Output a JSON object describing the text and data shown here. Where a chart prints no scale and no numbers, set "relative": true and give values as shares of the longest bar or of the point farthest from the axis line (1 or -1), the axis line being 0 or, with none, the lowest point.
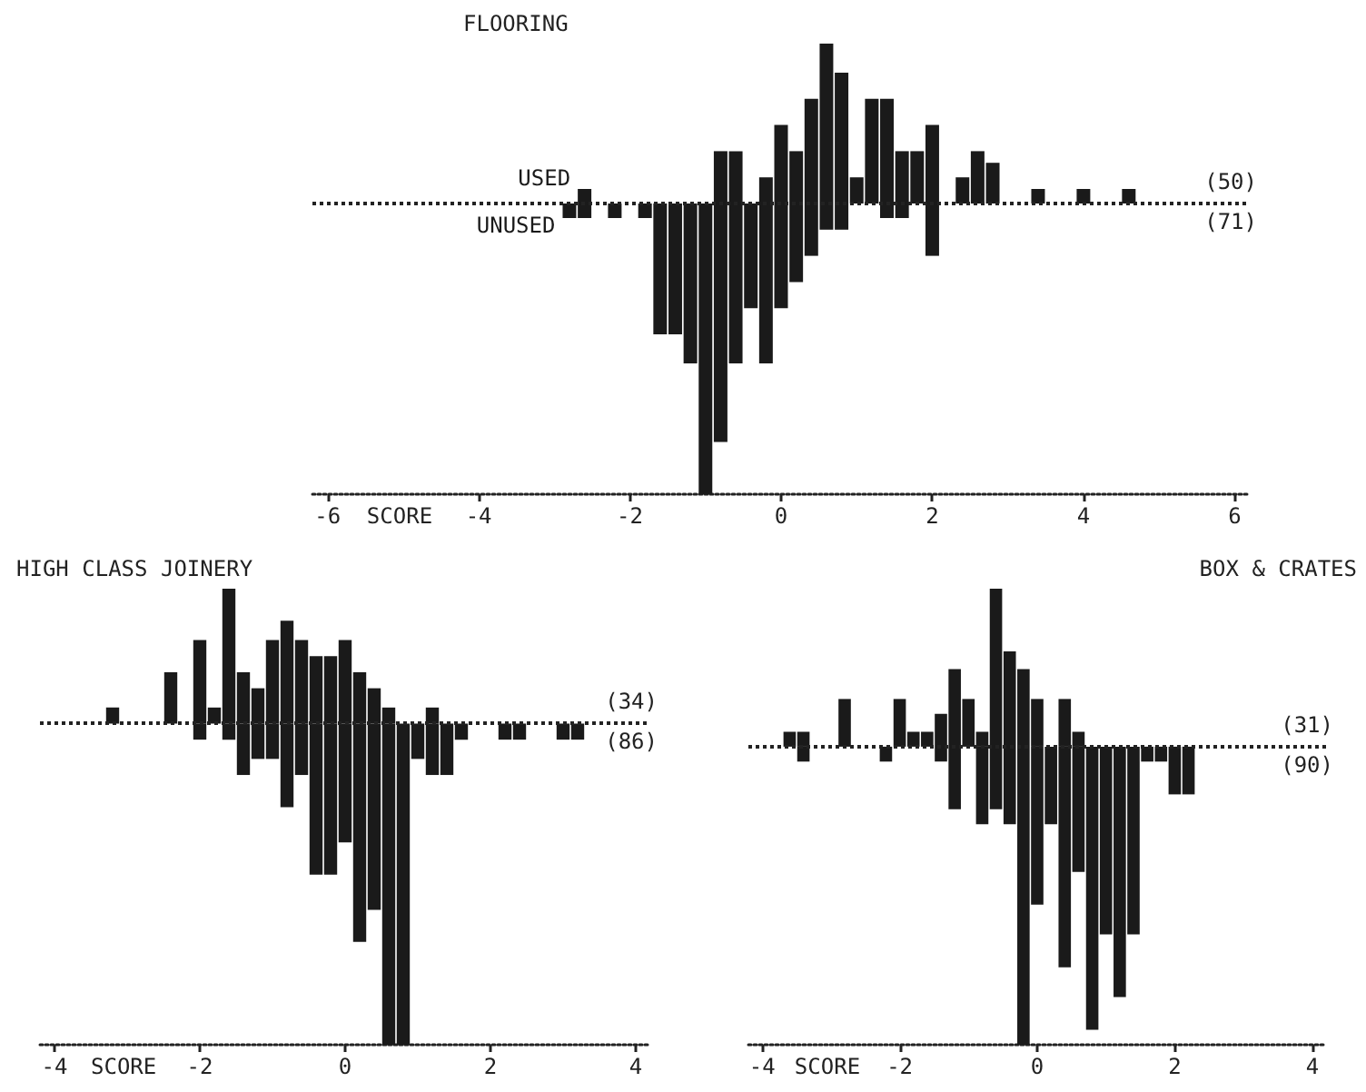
{
  "chart_data": [
    {
      "type": "bar",
      "title": "FLOORING",
      "xlabel": "SCORE",
      "relative": true,
      "ref_lines": [
        {
          "axis": "y",
          "value": 0,
          "line_style": "dotted",
          "color": "#222222"
        }
      ],
      "xlim": [
        -6.2,
        6.2
      ],
      "xticks": [
        -6,
        -4,
        -2,
        0,
        2,
        4,
        6
      ],
      "annotations": [
        "(50)",
        "(71)"
      ],
      "series": [
        {
          "name": "USED",
          "color": "#1a1a1a",
          "x": [
            -2.6,
            -0.8,
            -0.6,
            -0.2,
            0,
            0.2,
            0.4,
            0.6,
            0.8,
            1.0,
            1.2,
            1.4,
            1.6,
            1.8,
            2.0,
            2.4,
            2.6,
            2.8,
            3.4,
            4.0,
            4.6
          ],
          "values": [
            0.05,
            0.18,
            0.18,
            0.09,
            0.27,
            0.18,
            0.36,
            0.55,
            0.45,
            0.09,
            0.36,
            0.36,
            0.18,
            0.18,
            0.27,
            0.09,
            0.18,
            0.14,
            0.05,
            0.05,
            0.05
          ]
        },
        {
          "name": "UNUSED",
          "color": "#1a1a1a",
          "x": [
            -2.8,
            -2.6,
            -2.2,
            -1.8,
            -1.6,
            -1.4,
            -1.2,
            -1.0,
            -0.8,
            -0.6,
            -0.4,
            -0.2,
            0,
            0.2,
            0.4,
            0.6,
            0.8,
            1.4,
            1.6,
            2.0
          ],
          "values": [
            -0.05,
            -0.05,
            -0.05,
            -0.05,
            -0.45,
            -0.45,
            -0.55,
            -1,
            -0.82,
            -0.55,
            -0.36,
            -0.55,
            -0.36,
            -0.27,
            -0.18,
            -0.09,
            -0.09,
            -0.05,
            -0.05,
            -0.18
          ]
        }
      ]
    },
    {
      "type": "bar",
      "title": "HIGH CLASS JOINERY",
      "xlabel": "SCORE",
      "relative": true,
      "ref_lines": [
        {
          "axis": "y",
          "value": 0,
          "line_style": "dotted",
          "color": "#222222"
        }
      ],
      "xlim": [
        -4.2,
        4.2
      ],
      "xticks": [
        -4,
        -2,
        0,
        2,
        4
      ],
      "annotations": [
        "(34)",
        "(86)"
      ],
      "series": [
        {
          "color": "#1a1a1a",
          "x": [
            -3.2,
            -2.4,
            -2.0,
            -1.8,
            -1.6,
            -1.4,
            -1.2,
            -1.0,
            -0.8,
            -0.6,
            -0.4,
            -0.2,
            0,
            0.2,
            0.4,
            0.6,
            1.2
          ],
          "values": [
            0.05,
            0.16,
            0.26,
            0.05,
            0.42,
            0.16,
            0.11,
            0.26,
            0.32,
            0.26,
            0.21,
            0.21,
            0.26,
            0.16,
            0.11,
            0.05,
            0.05
          ]
        },
        {
          "color": "#1a1a1a",
          "x": [
            -2.0,
            -1.6,
            -1.4,
            -1.2,
            -1.0,
            -0.8,
            -0.6,
            -0.4,
            -0.2,
            0,
            0.2,
            0.4,
            0.6,
            0.8,
            1.0,
            1.2,
            1.4,
            1.6,
            2.2,
            2.4,
            3.0,
            3.2
          ],
          "values": [
            -0.05,
            -0.05,
            -0.16,
            -0.11,
            -0.11,
            -0.26,
            -0.16,
            -0.47,
            -0.47,
            -0.37,
            -0.68,
            -0.58,
            -1,
            -1,
            -0.11,
            -0.16,
            -0.16,
            -0.05,
            -0.05,
            -0.05,
            -0.05,
            -0.05
          ]
        }
      ]
    },
    {
      "type": "bar",
      "title": "BOX & CRATES",
      "xlabel": "SCORE",
      "relative": true,
      "ref_lines": [
        {
          "axis": "y",
          "value": 0,
          "line_style": "dotted",
          "color": "#222222"
        }
      ],
      "xlim": [
        -4.2,
        4.2
      ],
      "xticks": [
        -4,
        -2,
        0,
        2,
        4
      ],
      "annotations": [
        "(31)",
        "(90)"
      ],
      "series": [
        {
          "color": "#1a1a1a",
          "x": [
            -3.6,
            -3.4,
            -2.8,
            -2.0,
            -1.8,
            -1.6,
            -1.4,
            -1.2,
            -1.0,
            -0.8,
            -0.6,
            -0.4,
            -0.2,
            0,
            0.4,
            0.6
          ],
          "values": [
            0.05,
            0.05,
            0.16,
            0.16,
            0.05,
            0.05,
            0.11,
            0.26,
            0.16,
            0.05,
            0.53,
            0.32,
            0.26,
            0.16,
            0.16,
            0.05
          ]
        },
        {
          "color": "#1a1a1a",
          "x": [
            -3.4,
            -2.2,
            -1.4,
            -1.2,
            -0.8,
            -0.6,
            -0.4,
            -0.2,
            0,
            0.2,
            0.4,
            0.6,
            0.8,
            1.0,
            1.2,
            1.4,
            1.6,
            1.8,
            2.0,
            2.2
          ],
          "values": [
            -0.05,
            -0.05,
            -0.05,
            -0.21,
            -0.26,
            -0.21,
            -0.26,
            -1,
            -0.53,
            -0.26,
            -0.74,
            -0.42,
            -0.95,
            -0.63,
            -0.84,
            -0.63,
            -0.05,
            -0.05,
            -0.16,
            -0.16
          ]
        }
      ]
    }
  ]
}
